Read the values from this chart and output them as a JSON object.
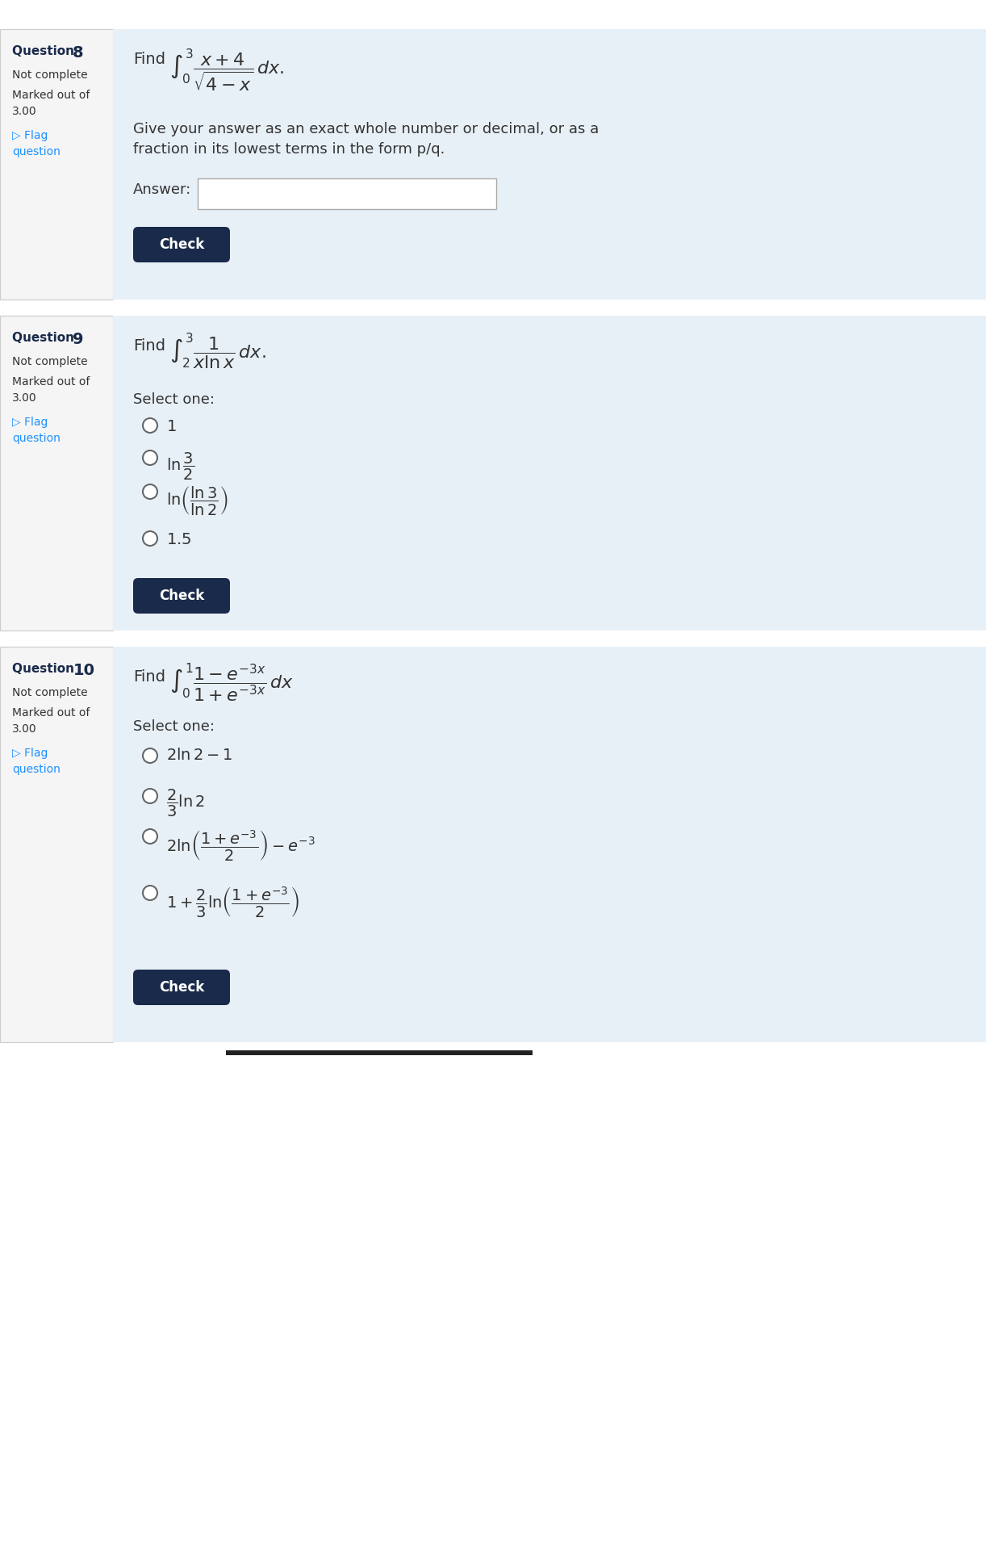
{
  "bg_color": "#ffffff",
  "panel_bg": "#e8f0f7",
  "sidebar_bg": "#f5f5f5",
  "sidebar_border": "#cccccc",
  "header_bg": "#ffffff",
  "dark_blue": "#1a2a4a",
  "link_blue": "#1e90ff",
  "text_color": "#333333",
  "q8_number": "Question 8",
  "q8_status": "Not complete",
  "q8_marked": "Marked out of",
  "q8_score": "3.00",
  "q8_flag": "▷ Flag",
  "q8_question_word": "question",
  "q8_find_text": "Find",
  "q8_integral": "$\\int_0^3 \\dfrac{x+4}{\\sqrt{4-x}}\\,dx.$",
  "q8_instruction": "Give your answer as an exact whole number or decimal, or as a",
  "q8_instruction2": "fraction in its lowest terms in the form p/q.",
  "q8_answer_label": "Answer:",
  "q8_check": "Check",
  "q9_number": "Question 9",
  "q9_status": "Not complete",
  "q9_marked": "Marked out of",
  "q9_score": "3.00",
  "q9_flag": "▷ Flag",
  "q9_question_word": "question",
  "q9_find_text": "Find",
  "q9_integral": "$\\int_2^3 \\dfrac{1}{x\\ln x}\\,dx.$",
  "q9_select": "Select one:",
  "q9_opt1": "$1$",
  "q9_opt2": "$\\ln\\dfrac{3}{2}$",
  "q9_opt3": "$\\ln\\!\\left(\\dfrac{\\ln 3}{\\ln 2}\\right)$",
  "q9_opt4": "$1.5$",
  "q9_check": "Check",
  "q10_number": "Question 10",
  "q10_status": "Not complete",
  "q10_marked": "Marked out of",
  "q10_score": "3.00",
  "q10_flag": "▷ Flag",
  "q10_question_word": "question",
  "q10_find_text": "Find",
  "q10_integral": "$\\int_0^1 \\dfrac{1-e^{-3x}}{1+e^{-3x}}\\,dx$",
  "q10_select": "Select one:",
  "q10_opt1": "$2\\ln 2 - 1$",
  "q10_opt2": "$\\dfrac{2}{3}\\ln 2$",
  "q10_opt3": "$2\\ln\\!\\left(\\dfrac{1+e^{-3}}{2}\\right) - e^{-3}$",
  "q10_opt4": "$1 + \\dfrac{2}{3}\\ln\\!\\left(\\dfrac{1+e^{-3}}{2}\\right)$",
  "q10_check": "Check"
}
